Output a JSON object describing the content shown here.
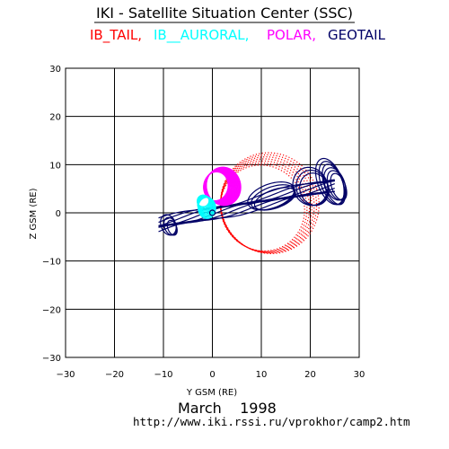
{
  "chart_data": {
    "type": "scatter",
    "title": "IKI - Satellite Situation Center (SSC)",
    "xlabel": "Y GSM (RE)",
    "ylabel": "Z GSM (RE)",
    "xlim": [
      -30,
      30
    ],
    "ylim": [
      -30,
      30
    ],
    "xticks": [
      -30,
      -20,
      -10,
      0,
      10,
      20,
      30
    ],
    "yticks": [
      -30,
      -20,
      -10,
      0,
      10,
      20,
      30
    ],
    "xtick_labels": [
      "−30",
      "−20",
      "−10",
      "0",
      "10",
      "20",
      "30"
    ],
    "ytick_labels": [
      "−30",
      "−20",
      "−10",
      "0",
      "10",
      "20",
      "30"
    ],
    "grid": true,
    "legend_placement": "top",
    "series": [
      {
        "name": "IB_TAIL",
        "label": "IB_TAIL,",
        "color": "#ff0000",
        "style": "dotted-loops",
        "loop_center": [
          11,
          1.5
        ],
        "loop_radius_y": [
          8.5,
          10
        ],
        "loop_radius_z": [
          9,
          10.5
        ],
        "loop_tilt_deg": 25
      },
      {
        "name": "IB__AURORAL",
        "label": "IB__AURORAL,",
        "color": "#00ffff",
        "style": "dense-loops",
        "loop_center": [
          -1.5,
          2.5
        ],
        "loop_radius_y": [
          1.2,
          1.8
        ],
        "loop_radius_z": [
          1.2,
          2.2
        ]
      },
      {
        "name": "POLAR",
        "label": "POLAR,",
        "color": "#ff00ff",
        "style": "dense-loops",
        "loop_center": [
          1.5,
          5.5
        ],
        "loop_radius_y": [
          2.5,
          3.5
        ],
        "loop_radius_z": [
          3,
          4
        ]
      },
      {
        "name": "GEOTAIL",
        "label": "GEOTAIL",
        "color": "#000066",
        "style": "lines",
        "loops": [
          {
            "center": [
              -9,
              -2.5
            ],
            "ry": 1.5,
            "rz": 2.2
          },
          {
            "center": [
              12,
              3.5
            ],
            "ry": 5,
            "rz": 2.5
          },
          {
            "center": [
              20,
              5.5
            ],
            "ry": 3.5,
            "rz": 4
          },
          {
            "center": [
              24,
              6.5
            ],
            "ry": 2.5,
            "rz": 5
          },
          {
            "center": [
              25,
              6
            ],
            "ry": 2,
            "rz": 3.5
          }
        ],
        "extent_y": [
          -11,
          27
        ],
        "extent_z": [
          -5,
          13
        ]
      }
    ]
  },
  "footer": {
    "date": "March    1998",
    "url": "http://www.iki.rssi.ru/vprokhor/camp2.htm"
  }
}
